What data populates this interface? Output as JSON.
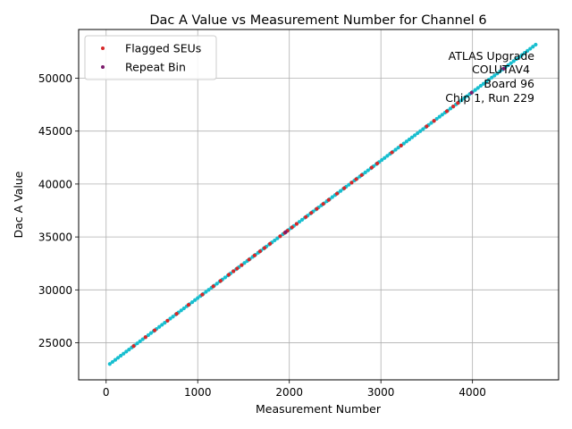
{
  "chart_data": {
    "type": "scatter",
    "title": "Dac A Value vs Measurement Number for Channel 6",
    "xlabel": "Measurement Number",
    "ylabel": "Dac A Value",
    "xlim": [
      -300,
      4940
    ],
    "ylim": [
      21500,
      54600
    ],
    "xticks": [
      0,
      1000,
      2000,
      3000,
      4000
    ],
    "yticks": [
      25000,
      30000,
      35000,
      40000,
      45000,
      50000
    ],
    "grid": true,
    "legend_position": "top-left",
    "legend": [
      {
        "label": "Flagged SEUs",
        "color": "#d62728"
      },
      {
        "label": "Repeat Bin",
        "color": "#7b1a6b"
      }
    ],
    "annotation_lines": [
      "ATLAS Upgrade",
      "COLUTAV4",
      "Board 96",
      "Chip 1, Run 229"
    ],
    "main_series": {
      "color": "#17becf",
      "x_start": 40,
      "x_end": 4710,
      "y_start": 23000,
      "y_end": 53300
    },
    "flagged_series": {
      "color": "#d62728",
      "x": [
        300,
        430,
        530,
        670,
        770,
        900,
        1050,
        1170,
        1250,
        1340,
        1390,
        1430,
        1480,
        1560,
        1620,
        1680,
        1730,
        1790,
        1900,
        1950,
        1980,
        2030,
        2080,
        2180,
        2240,
        2300,
        2370,
        2430,
        2520,
        2600,
        2680,
        2730,
        2790,
        2900,
        2960,
        3120,
        3220,
        3500,
        3580,
        3720,
        3790,
        3840
      ]
    },
    "repeat_series": {
      "color": "#7b1a6b",
      "x": [
        1960,
        3990,
        4340
      ]
    }
  }
}
